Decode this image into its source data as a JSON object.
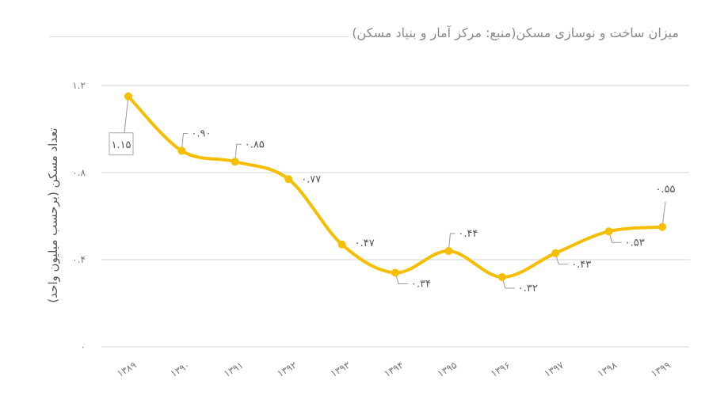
{
  "chart_data": {
    "type": "line",
    "title": "میزان ساخت و نوسازی مسکن(منبع: مرکز آمار و بنیاد مسکن)",
    "xlabel": "",
    "ylabel": "تعداد مسکن (برحسب میلیون واحد)",
    "categories": [
      "۱۳۸۹",
      "۱۳۹۰",
      "۱۳۹۱",
      "۱۳۹۲",
      "۱۳۹۳",
      "۱۳۹۴",
      "۱۳۹۵",
      "۱۳۹۶",
      "۱۳۹۷",
      "۱۳۹۸",
      "۱۳۹۹"
    ],
    "series": [
      {
        "name": "تعداد مسکن",
        "color": "#F5BE00",
        "values": [
          1.15,
          0.9,
          0.85,
          0.77,
          0.47,
          0.34,
          0.44,
          0.32,
          0.43,
          0.53,
          0.55
        ]
      }
    ],
    "value_labels": [
      "۱.۱۵",
      "۰.۹۰",
      "۰.۸۵",
      "۰.۷۷",
      "۰.۴۷",
      "۰.۳۴",
      "۰.۴۴",
      "۰.۳۲",
      "۰.۴۳",
      "۰.۵۳",
      "۰.۵۵"
    ],
    "yticks": [
      0,
      0.4,
      0.8,
      1.2
    ],
    "ytick_labels": [
      "۰",
      "۰.۴",
      "۰.۸",
      "۱.۲"
    ],
    "ylim": [
      0,
      1.2
    ],
    "grid": true,
    "legend": "none"
  }
}
